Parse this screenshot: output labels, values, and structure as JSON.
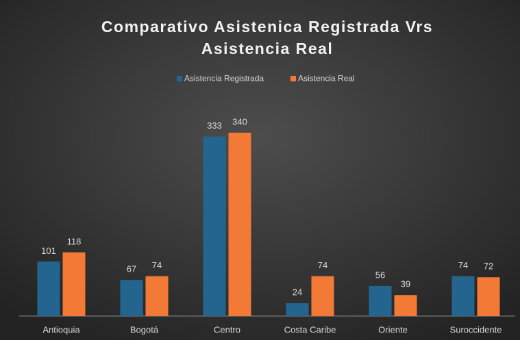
{
  "chart_data": {
    "type": "bar",
    "title": [
      "Comparativo Asistenica Registrada Vrs",
      "Asistencia Real"
    ],
    "categories": [
      "Antioquia",
      "Bogotá",
      "Centro",
      "Costa Caribe",
      "Oriente",
      "Suroccidente"
    ],
    "series": [
      {
        "name": "Asistencia Registrada",
        "color": "#23658f",
        "values": [
          101,
          67,
          333,
          24,
          56,
          74
        ]
      },
      {
        "name": "Asistencia Real",
        "color": "#f27a36",
        "values": [
          118,
          74,
          340,
          74,
          39,
          72
        ]
      }
    ],
    "legend": "top"
  }
}
